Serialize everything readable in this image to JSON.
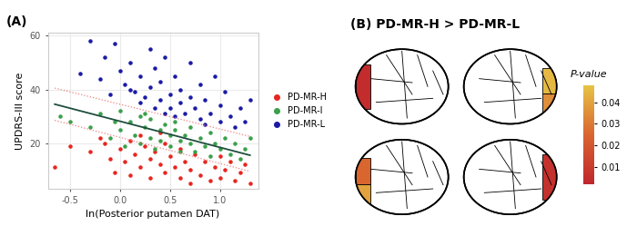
{
  "chart_data": [
    {
      "type": "scatter",
      "title": "(A)",
      "x_label": "ln(Posterior putamen DAT)",
      "y_label": "UPDRS-III score",
      "xlim": [
        -0.72,
        1.38
      ],
      "xticks": [
        -0.5,
        0.0,
        0.5,
        1.0
      ],
      "ylim": [
        3,
        61
      ],
      "yticks": [
        20,
        40,
        60
      ],
      "grid": true,
      "legend": "right",
      "series": [
        {
          "name": "PD-MR-H",
          "type": "scatter",
          "color": "#e8251f",
          "marker": "circle",
          "x": [
            -0.65,
            -0.5,
            -0.3,
            -0.2,
            -0.1,
            -0.05,
            0.0,
            0.05,
            0.1,
            0.1,
            0.15,
            0.2,
            0.25,
            0.3,
            0.3,
            0.35,
            0.4,
            0.45,
            0.45,
            0.5,
            0.55,
            0.6,
            0.6,
            0.65,
            0.7,
            0.75,
            0.8,
            0.85,
            0.9,
            0.95,
            1.0,
            1.0,
            1.05,
            1.1,
            1.15,
            1.2,
            1.25,
            1.3,
            0.2,
            0.4,
            -0.15,
            0.7
          ],
          "values": [
            11,
            19,
            17,
            22,
            14,
            9,
            18,
            13,
            21,
            8,
            16,
            11,
            19,
            14,
            7,
            17,
            12,
            20,
            9,
            15,
            11,
            18,
            7,
            13,
            10,
            16,
            8,
            13,
            6,
            11,
            15,
            7,
            10,
            13,
            6,
            9,
            12,
            5,
            23,
            24,
            20,
            5
          ]
        },
        {
          "name": "PD-MR-I",
          "type": "scatter",
          "color": "#3aa04a",
          "marker": "circle",
          "x": [
            -0.6,
            -0.5,
            -0.3,
            -0.2,
            -0.1,
            0.0,
            0.0,
            0.05,
            0.1,
            0.15,
            0.2,
            0.2,
            0.25,
            0.3,
            0.3,
            0.35,
            0.4,
            0.4,
            0.45,
            0.5,
            0.5,
            0.55,
            0.6,
            0.6,
            0.65,
            0.7,
            0.7,
            0.75,
            0.8,
            0.85,
            0.9,
            0.9,
            0.95,
            1.0,
            1.05,
            1.1,
            1.15,
            1.2,
            1.25,
            1.3,
            -0.05,
            0.25,
            0.55
          ],
          "values": [
            30,
            28,
            26,
            31,
            22,
            32,
            25,
            19,
            28,
            23,
            30,
            20,
            26,
            22,
            29,
            18,
            25,
            21,
            27,
            23,
            19,
            25,
            21,
            17,
            23,
            20,
            26,
            17,
            22,
            19,
            24,
            15,
            20,
            18,
            22,
            16,
            20,
            14,
            18,
            22,
            28,
            31,
            28
          ]
        },
        {
          "name": "PD-MR-L",
          "type": "scatter",
          "color": "#1a1aa6",
          "marker": "circle",
          "x": [
            -0.3,
            -0.15,
            -0.05,
            0.0,
            0.05,
            -0.2,
            0.1,
            0.15,
            0.2,
            0.25,
            0.3,
            0.3,
            0.35,
            0.4,
            0.4,
            0.45,
            0.5,
            0.5,
            0.55,
            0.6,
            0.6,
            0.65,
            0.7,
            0.7,
            0.75,
            0.8,
            0.8,
            0.85,
            0.9,
            0.95,
            1.0,
            1.0,
            1.05,
            1.1,
            1.15,
            1.2,
            1.25,
            1.3,
            -0.1,
            0.2,
            0.35,
            0.55,
            0.85,
            -0.4,
            0.1,
            0.45
          ],
          "values": [
            58,
            52,
            57,
            47,
            42,
            44,
            50,
            39,
            45,
            37,
            55,
            41,
            48,
            36,
            43,
            52,
            38,
            33,
            45,
            35,
            40,
            31,
            50,
            37,
            33,
            42,
            29,
            36,
            31,
            45,
            34,
            28,
            39,
            30,
            26,
            33,
            28,
            36,
            38,
            35,
            33,
            30,
            27,
            46,
            40,
            31
          ]
        },
        {
          "type": "line",
          "color": "#1f4e3d",
          "line_style": "solid",
          "x": [
            -0.65,
            1.3
          ],
          "values": [
            34.5,
            15.5
          ]
        },
        {
          "type": "line",
          "color": "#f08080",
          "line_style": "dotted",
          "x": [
            -0.65,
            1.3
          ],
          "values": [
            40.5,
            22.5
          ]
        },
        {
          "type": "line",
          "color": "#f08080",
          "line_style": "dotted",
          "x": [
            -0.65,
            1.3
          ],
          "values": [
            28.5,
            9.5
          ]
        }
      ]
    },
    {
      "type": "brain_map",
      "title": "(B) PD-MR-H > PD-MR-L",
      "colorbar_label": "P-value",
      "colorbar_range": [
        0.002,
        0.048
      ],
      "colorbar_ticks": [
        0.01,
        0.02,
        0.03,
        0.04
      ],
      "p_values": [
        [
          0.004
        ],
        [
          0.045,
          0.035
        ],
        [
          0.025,
          0.04
        ],
        [
          0.006
        ]
      ]
    }
  ]
}
